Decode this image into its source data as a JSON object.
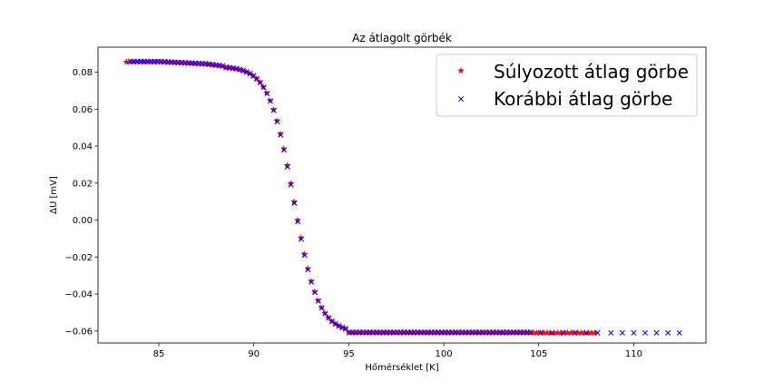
{
  "chart_data": {
    "type": "scatter",
    "title": "Az átlagolt görbék",
    "xlabel": "Hőmérséklet [K]",
    "ylabel": "ΔU [mV]",
    "xlim": [
      81.8,
      113.8
    ],
    "ylim": [
      -0.0665,
      0.0935
    ],
    "xticks": [
      85,
      90,
      95,
      100,
      105,
      110
    ],
    "yticks": [
      0.08,
      0.06,
      0.04,
      0.02,
      0.0,
      -0.02,
      -0.04,
      -0.06
    ],
    "ytick_labels": [
      "0.08",
      "0.06",
      "0.04",
      "0.02",
      "0.00",
      "−0.02",
      "−0.04",
      "−0.06"
    ],
    "grid": false,
    "legend_position": "top-right",
    "series": [
      {
        "name": "Súlyozott átlag görbe",
        "marker": "star",
        "color": "#ff0000",
        "x_start": 83.3,
        "x_end": 108.0,
        "step": 0.18
      },
      {
        "name": "Korábbi átlag görbe",
        "marker": "x",
        "color": "#0000ff",
        "x_start": 83.5,
        "x_end": 104.6,
        "step": 0.18,
        "extra_x": [
          105.1,
          105.7,
          106.3,
          106.9,
          107.5,
          108.1,
          108.8,
          109.4,
          110.0,
          110.6,
          111.2,
          111.8,
          112.4
        ]
      }
    ],
    "curve_model": {
      "plateau_high": 0.0855,
      "plateau_low": -0.061,
      "transition_start": 88.5,
      "transition_end": 95.0,
      "midpoint": 92.1
    }
  }
}
